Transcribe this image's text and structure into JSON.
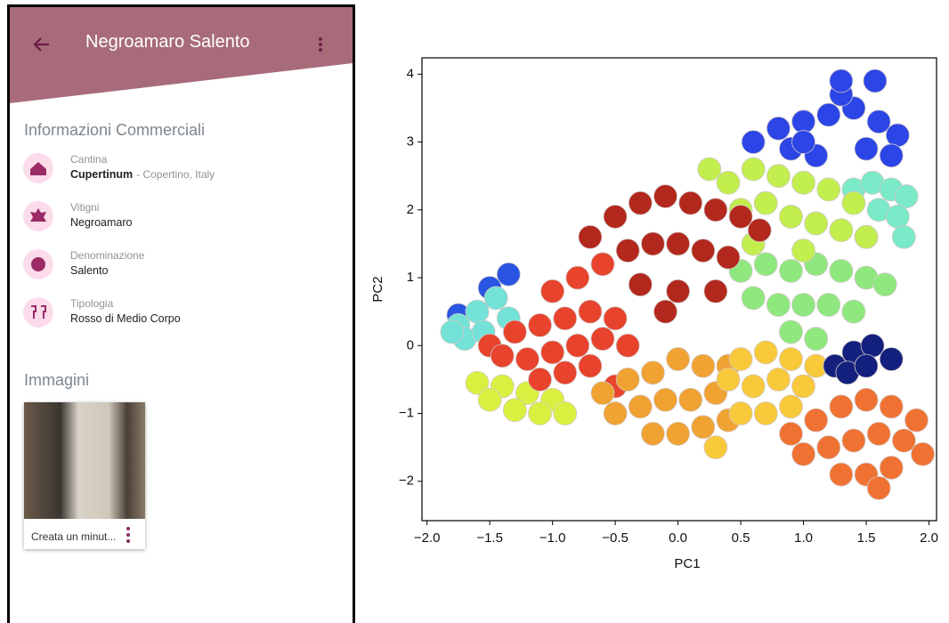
{
  "app": {
    "title": "Negroamaro Salento",
    "commercial": {
      "heading": "Informazioni Commerciali",
      "items": [
        {
          "label": "Cantina",
          "value": "Cupertinum",
          "detail": "- Copertino, Italy"
        },
        {
          "label": "Vitigni",
          "value": "Negroamaro"
        },
        {
          "label": "Denominazione",
          "value": "Salento"
        },
        {
          "label": "Tipologia",
          "value": "Rosso di Medio Corpo"
        }
      ]
    },
    "images": {
      "heading": "Immagini",
      "cards": [
        {
          "caption": "Creata un minut..."
        }
      ]
    }
  },
  "chart_data": {
    "type": "scatter",
    "xlabel": "PC1",
    "ylabel": "PC2",
    "xlim": [
      -2.04,
      2.06
    ],
    "ylim": [
      -2.58,
      4.24
    ],
    "xticks": [
      {
        "value": -2.0,
        "label": "−2.0"
      },
      {
        "value": -1.5,
        "label": "−1.5"
      },
      {
        "value": -1.0,
        "label": "−1.0"
      },
      {
        "value": -0.5,
        "label": "−0.5"
      },
      {
        "value": 0.0,
        "label": "0.0"
      },
      {
        "value": 0.5,
        "label": "0.5"
      },
      {
        "value": 1.0,
        "label": "1.0"
      },
      {
        "value": 1.5,
        "label": "1.5"
      },
      {
        "value": 2.0,
        "label": "2.0"
      }
    ],
    "yticks": [
      {
        "value": -2,
        "label": "−2"
      },
      {
        "value": -1,
        "label": "−1"
      },
      0,
      1,
      2,
      3,
      4
    ],
    "series": [
      {
        "color": "#2b45e6",
        "x": [
          0.6,
          0.8,
          1.0,
          1.2,
          1.4,
          1.6,
          1.75,
          1.3,
          0.9,
          1.1,
          1.5,
          1.7,
          1.3,
          1.57,
          1.0
        ],
        "values": [
          3.0,
          3.2,
          3.3,
          3.4,
          3.5,
          3.3,
          3.1,
          3.7,
          2.9,
          2.8,
          2.9,
          2.8,
          3.9,
          3.9,
          3.0
        ]
      },
      {
        "color": "#7aeac8",
        "x": [
          1.4,
          1.55,
          1.7,
          1.82,
          1.6,
          1.75,
          1.5,
          1.8
        ],
        "values": [
          2.3,
          2.4,
          2.3,
          2.2,
          2.0,
          1.9,
          1.6,
          1.6
        ]
      },
      {
        "color": "#8fe87e",
        "x": [
          0.5,
          0.7,
          0.9,
          1.1,
          1.3,
          1.5,
          1.65,
          0.6,
          0.8,
          1.0,
          1.2,
          1.4,
          0.9,
          1.1
        ],
        "values": [
          1.1,
          1.2,
          1.1,
          1.2,
          1.1,
          1.0,
          0.9,
          0.7,
          0.6,
          0.6,
          0.6,
          0.5,
          0.2,
          0.1
        ]
      },
      {
        "color": "#c2ee4e",
        "x": [
          0.25,
          0.4,
          0.6,
          0.8,
          1.0,
          1.2,
          1.4,
          0.5,
          0.7,
          0.9,
          1.1,
          1.3,
          0.6,
          1.0,
          1.5
        ],
        "values": [
          2.6,
          2.4,
          2.6,
          2.5,
          2.4,
          2.3,
          2.1,
          2.0,
          2.1,
          1.9,
          1.8,
          1.7,
          1.5,
          1.4,
          1.6
        ]
      },
      {
        "color": "#b3281c",
        "x": [
          -0.7,
          -0.5,
          -0.3,
          -0.1,
          0.1,
          0.3,
          0.5,
          0.65,
          -0.6,
          -0.4,
          -0.2,
          0,
          0.2,
          0.4,
          -0.3,
          0,
          0.3,
          -0.1
        ],
        "values": [
          1.6,
          1.9,
          2.1,
          2.2,
          2.1,
          2.0,
          1.9,
          1.7,
          1.2,
          1.4,
          1.5,
          1.5,
          1.4,
          1.3,
          0.9,
          0.8,
          0.8,
          0.5
        ]
      },
      {
        "color": "#2a55e2",
        "x": [
          -1.75,
          -1.5,
          -1.35
        ],
        "values": [
          0.45,
          0.85,
          1.05
        ]
      },
      {
        "color": "#74e2d6",
        "x": [
          -1.75,
          -1.6,
          -1.45,
          -1.7,
          -1.55,
          -1.35,
          -1.8
        ],
        "values": [
          0.3,
          0.5,
          0.7,
          0.1,
          0.2,
          0.4,
          0.2
        ]
      },
      {
        "color": "#daf040",
        "x": [
          -1.6,
          -1.4,
          -1.2,
          -1.0,
          -1.5,
          -1.3,
          -1.1,
          -0.9
        ],
        "values": [
          -0.55,
          -0.6,
          -0.7,
          -0.8,
          -0.8,
          -0.95,
          -1.0,
          -1.0
        ]
      },
      {
        "color": "#e8432c",
        "x": [
          -1.5,
          -1.3,
          -1.1,
          -0.9,
          -0.7,
          -0.5,
          -1.4,
          -1.2,
          -1.0,
          -0.8,
          -0.6,
          -0.4,
          -1.1,
          -0.9,
          -0.7,
          -0.8,
          -0.6,
          -1.0,
          -0.5
        ],
        "values": [
          0.0,
          0.2,
          0.3,
          0.4,
          0.5,
          0.4,
          -0.15,
          -0.2,
          -0.1,
          0.0,
          0.1,
          0.0,
          -0.5,
          -0.4,
          -0.3,
          1.0,
          1.2,
          0.8,
          -0.6
        ]
      },
      {
        "color": "#f0a232",
        "x": [
          -0.6,
          -0.4,
          -0.2,
          0,
          0.2,
          0.4,
          -0.5,
          -0.3,
          -0.1,
          0.1,
          0.3,
          -0.2,
          0,
          0.2,
          0.4
        ],
        "values": [
          -0.7,
          -0.5,
          -0.4,
          -0.2,
          -0.3,
          -0.3,
          -1.0,
          -0.9,
          -0.8,
          -0.8,
          -0.7,
          -1.3,
          -1.3,
          -1.2,
          -1.1
        ]
      },
      {
        "color": "#f8c93a",
        "x": [
          0.5,
          0.7,
          0.9,
          1.1,
          0.6,
          0.8,
          1.0,
          0.5,
          0.7,
          0.3,
          0.9,
          0.4
        ],
        "values": [
          -0.2,
          -0.1,
          -0.2,
          -0.3,
          -0.6,
          -0.5,
          -0.6,
          -1.0,
          -1.0,
          -1.5,
          -0.9,
          -0.5
        ]
      },
      {
        "color": "#13207e",
        "x": [
          1.25,
          1.4,
          1.55,
          1.7,
          1.35,
          1.5
        ],
        "values": [
          -0.3,
          -0.1,
          0.0,
          -0.2,
          -0.4,
          -0.3
        ]
      },
      {
        "color": "#f07232",
        "x": [
          0.9,
          1.1,
          1.3,
          1.5,
          1.7,
          1.9,
          1.0,
          1.2,
          1.4,
          1.6,
          1.8,
          1.95,
          1.3,
          1.5,
          1.7,
          1.6
        ],
        "values": [
          -1.3,
          -1.1,
          -0.9,
          -0.8,
          -0.9,
          -1.1,
          -1.6,
          -1.5,
          -1.4,
          -1.3,
          -1.4,
          -1.6,
          -1.9,
          -1.9,
          -1.8,
          -2.1
        ]
      }
    ]
  }
}
